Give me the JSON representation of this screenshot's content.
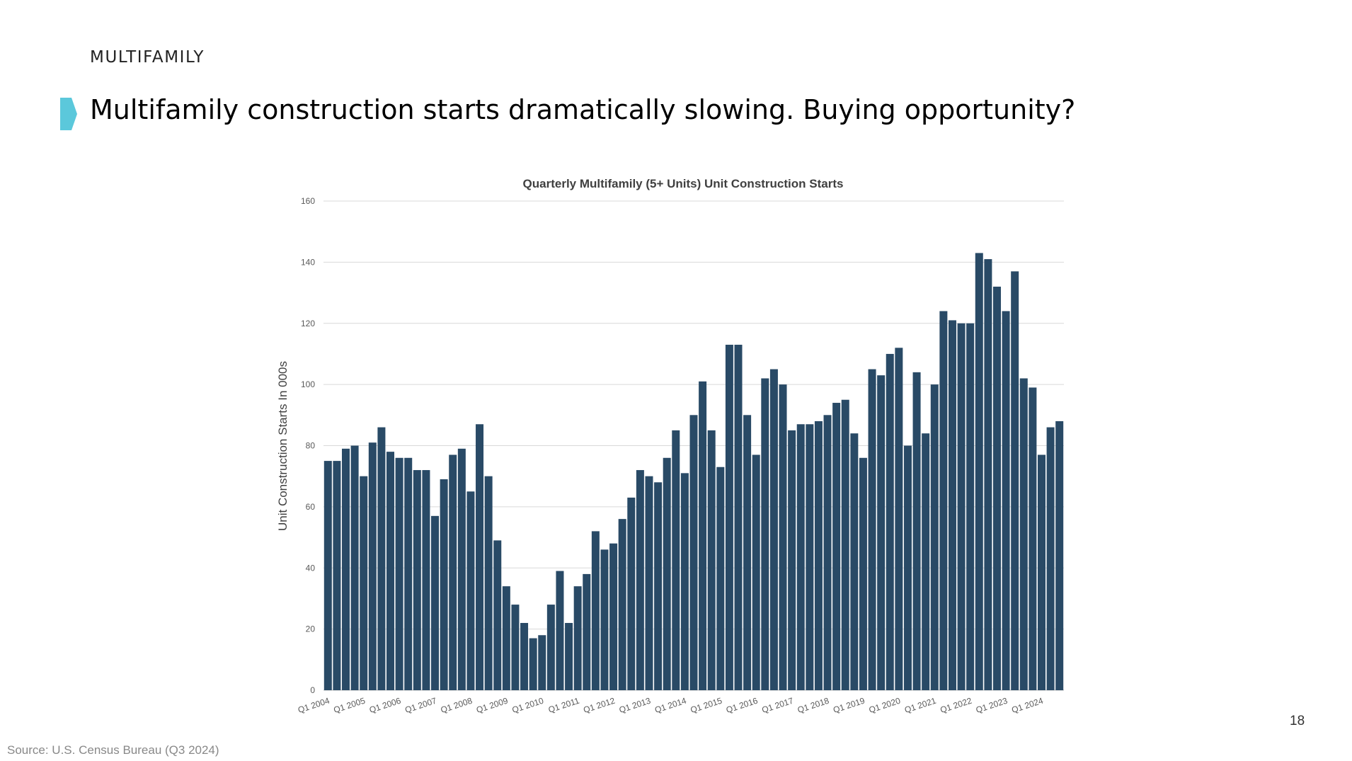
{
  "header": {
    "section_label": "MULTIFAMILY",
    "title": "Multifamily construction starts dramatically slowing. Buying opportunity?",
    "marker_color": "#5BC8DB"
  },
  "footer": {
    "page_number": "18",
    "source": "Source: U.S. Census Bureau (Q3 2024)"
  },
  "chart_data": {
    "type": "bar",
    "title": "Quarterly Multifamily (5+ Units) Unit Construction Starts",
    "xlabel": "",
    "ylabel": "Unit Construction Starts In 000s",
    "ylim": [
      0,
      160
    ],
    "yticks": [
      0,
      20,
      40,
      60,
      80,
      100,
      120,
      140,
      160
    ],
    "grid": true,
    "bar_color": "#294A66",
    "categories": [
      "Q1 2004",
      "Q2 2004",
      "Q3 2004",
      "Q4 2004",
      "Q1 2005",
      "Q2 2005",
      "Q3 2005",
      "Q4 2005",
      "Q1 2006",
      "Q2 2006",
      "Q3 2006",
      "Q4 2006",
      "Q1 2007",
      "Q2 2007",
      "Q3 2007",
      "Q4 2007",
      "Q1 2008",
      "Q2 2008",
      "Q3 2008",
      "Q4 2008",
      "Q1 2009",
      "Q2 2009",
      "Q3 2009",
      "Q4 2009",
      "Q1 2010",
      "Q2 2010",
      "Q3 2010",
      "Q4 2010",
      "Q1 2011",
      "Q2 2011",
      "Q3 2011",
      "Q4 2011",
      "Q1 2012",
      "Q2 2012",
      "Q3 2012",
      "Q4 2012",
      "Q1 2013",
      "Q2 2013",
      "Q3 2013",
      "Q4 2013",
      "Q1 2014",
      "Q2 2014",
      "Q3 2014",
      "Q4 2014",
      "Q1 2015",
      "Q2 2015",
      "Q3 2015",
      "Q4 2015",
      "Q1 2016",
      "Q2 2016",
      "Q3 2016",
      "Q4 2016",
      "Q1 2017",
      "Q2 2017",
      "Q3 2017",
      "Q4 2017",
      "Q1 2018",
      "Q2 2018",
      "Q3 2018",
      "Q4 2018",
      "Q1 2019",
      "Q2 2019",
      "Q3 2019",
      "Q4 2019",
      "Q1 2020",
      "Q2 2020",
      "Q3 2020",
      "Q4 2020",
      "Q1 2021",
      "Q2 2021",
      "Q3 2021",
      "Q4 2021",
      "Q1 2022",
      "Q2 2022",
      "Q3 2022",
      "Q4 2022",
      "Q1 2023",
      "Q2 2023",
      "Q3 2023",
      "Q4 2023",
      "Q1 2024",
      "Q2 2024",
      "Q3 2024"
    ],
    "xtick_labels": [
      "Q1 2004",
      "Q1 2005",
      "Q1 2006",
      "Q1 2007",
      "Q1 2008",
      "Q1 2009",
      "Q1 2010",
      "Q1 2011",
      "Q1 2012",
      "Q1 2013",
      "Q1 2014",
      "Q1 2015",
      "Q1 2016",
      "Q1 2017",
      "Q1 2018",
      "Q1 2019",
      "Q1 2020",
      "Q1 2021",
      "Q1 2022",
      "Q1 2023",
      "Q1 2024"
    ],
    "values": [
      75,
      75,
      79,
      80,
      70,
      81,
      86,
      78,
      76,
      76,
      72,
      72,
      57,
      69,
      77,
      79,
      65,
      87,
      70,
      49,
      34,
      28,
      22,
      17,
      18,
      28,
      39,
      22,
      34,
      38,
      52,
      46,
      48,
      56,
      63,
      72,
      70,
      68,
      76,
      85,
      71,
      90,
      101,
      85,
      73,
      113,
      113,
      90,
      77,
      102,
      105,
      100,
      85,
      87,
      87,
      88,
      90,
      94,
      95,
      84,
      76,
      105,
      103,
      110,
      112,
      80,
      104,
      84,
      100,
      124,
      121,
      120,
      120,
      143,
      141,
      132,
      124,
      137,
      102,
      99,
      77,
      86,
      88
    ]
  }
}
